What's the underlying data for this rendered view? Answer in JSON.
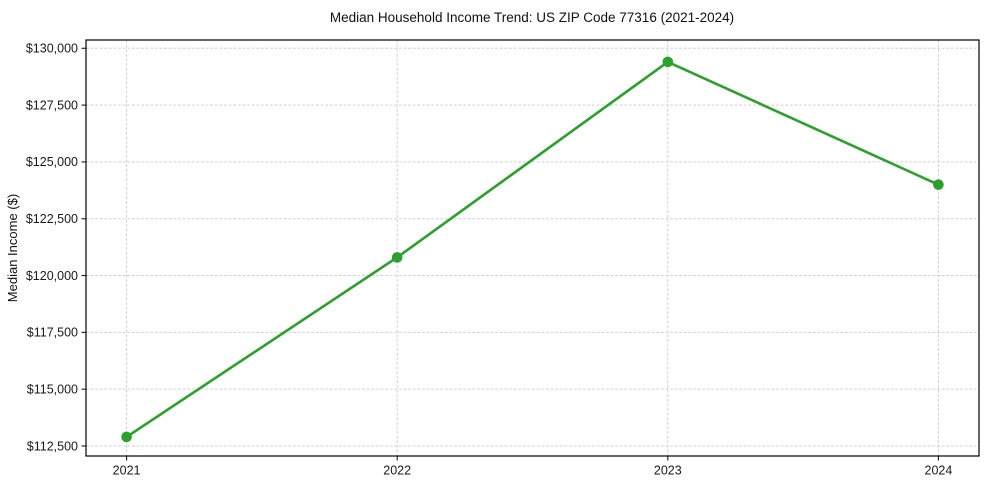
{
  "chart_data": {
    "type": "line",
    "title": "Median Household Income Trend: US ZIP Code 77316 (2021-2024)",
    "xlabel": "",
    "ylabel": "Median Income ($)",
    "x": [
      2021,
      2022,
      2023,
      2024
    ],
    "x_tick_labels": [
      "2021",
      "2022",
      "2023",
      "2024"
    ],
    "values": [
      112900,
      120800,
      129400,
      124000
    ],
    "y_ticks": [
      112500,
      115000,
      117500,
      120000,
      122500,
      125000,
      127500,
      130000
    ],
    "y_tick_labels": [
      "$112,500",
      "$115,000",
      "$117,500",
      "$120,000",
      "$122,500",
      "$125,000",
      "$127,500",
      "$130,000"
    ],
    "xlim": [
      2020.85,
      2024.15
    ],
    "ylim": [
      112060,
      130365
    ],
    "grid": true,
    "legend": "none",
    "line_color": "#2ca02c",
    "marker": "circle",
    "line_width": 2.6,
    "marker_radius": 5.3
  }
}
